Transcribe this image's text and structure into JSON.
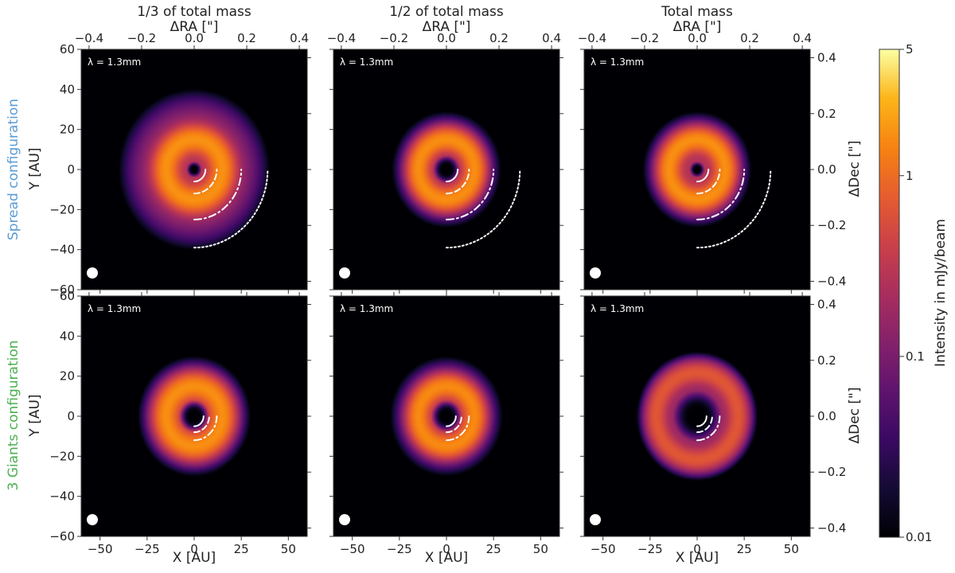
{
  "chart_data": {
    "type": "heatmap",
    "colormap": "inferno",
    "colorbar": {
      "label": "Intensity in mJy/beam",
      "scale": "log",
      "range": [
        0.01,
        5
      ],
      "ticks": [
        {
          "value": 5,
          "label": "5"
        },
        {
          "value": 1,
          "label": "1"
        },
        {
          "value": 0.1,
          "label": "0.1"
        },
        {
          "value": 0.01,
          "label": "0.01"
        }
      ]
    },
    "x_axis": {
      "label": "X [AU]",
      "range": [
        -60,
        60
      ],
      "ticks": [
        {
          "value": -50,
          "label": "−50"
        },
        {
          "value": -25,
          "label": "−25"
        },
        {
          "value": 0,
          "label": "0"
        },
        {
          "value": 25,
          "label": "25"
        },
        {
          "value": 50,
          "label": "50"
        }
      ]
    },
    "y_axis": {
      "label": "Y [AU]",
      "range": [
        -60,
        60
      ],
      "ticks": [
        {
          "value": 60,
          "label": "60"
        },
        {
          "value": 40,
          "label": "40"
        },
        {
          "value": 20,
          "label": "20"
        },
        {
          "value": 0,
          "label": "0"
        },
        {
          "value": -20,
          "label": "−20"
        },
        {
          "value": -40,
          "label": "−40"
        },
        {
          "value": -60,
          "label": "−60"
        }
      ]
    },
    "top_axis": {
      "label": "ΔRA [\"]",
      "range": [
        -0.43,
        0.43
      ],
      "ticks": [
        {
          "value": -0.4,
          "label": "−0.4"
        },
        {
          "value": -0.2,
          "label": "−0.2"
        },
        {
          "value": 0.0,
          "label": "0.0"
        },
        {
          "value": 0.2,
          "label": "0.2"
        },
        {
          "value": 0.4,
          "label": "0.4"
        }
      ]
    },
    "right_axis": {
      "label": "ΔDec [\"]",
      "range": [
        -0.43,
        0.43
      ],
      "ticks": [
        {
          "value": 0.4,
          "label": "0.4"
        },
        {
          "value": 0.2,
          "label": "0.2"
        },
        {
          "value": 0.0,
          "label": "0.0"
        },
        {
          "value": -0.2,
          "label": "−0.2"
        },
        {
          "value": -0.4,
          "label": "−0.4"
        }
      ]
    },
    "columns": [
      "1/3 of total mass",
      "1/2 of total mass",
      "Total mass"
    ],
    "rows": [
      {
        "label": "Spread configuration",
        "color": "#5b9bd5"
      },
      {
        "label": "3 Giants configuration",
        "color": "#4caf50"
      }
    ],
    "wavelength_label": "λ = 1.3mm",
    "panels": [
      {
        "row": 0,
        "col": 0,
        "cavity_radius_au": 4,
        "ring_radius_au": 15,
        "ring_width_au": 9,
        "ring_peak": 1.5,
        "halo_radius_au": 60,
        "halo_level": 0.25,
        "planet_arcs": [
          {
            "radius_au": 6,
            "style": "solid"
          },
          {
            "radius_au": 12,
            "style": "dashed"
          },
          {
            "radius_au": 25,
            "style": "dashdot"
          },
          {
            "radius_au": 39,
            "style": "dotted"
          }
        ]
      },
      {
        "row": 0,
        "col": 1,
        "cavity_radius_au": 7,
        "ring_radius_au": 15,
        "ring_width_au": 8,
        "ring_peak": 1.5,
        "halo_radius_au": 44,
        "halo_level": 0.2,
        "planet_arcs": [
          {
            "radius_au": 6,
            "style": "solid"
          },
          {
            "radius_au": 12,
            "style": "dashed"
          },
          {
            "radius_au": 25,
            "style": "dashdot"
          },
          {
            "radius_au": 39,
            "style": "dotted"
          }
        ]
      },
      {
        "row": 0,
        "col": 2,
        "cavity_radius_au": 4,
        "ring_radius_au": 15,
        "ring_width_au": 8,
        "ring_peak": 1.5,
        "halo_radius_au": 43,
        "halo_level": 0.25,
        "planet_arcs": [
          {
            "radius_au": 6,
            "style": "solid"
          },
          {
            "radius_au": 12,
            "style": "dashed"
          },
          {
            "radius_au": 25,
            "style": "dashdot"
          },
          {
            "radius_au": 39,
            "style": "dotted"
          }
        ]
      },
      {
        "row": 1,
        "col": 0,
        "cavity_radius_au": 8,
        "ring_radius_au": 15,
        "ring_width_au": 9,
        "ring_peak": 1.5,
        "halo_radius_au": 45,
        "halo_level": 0.22,
        "planet_arcs": [
          {
            "radius_au": 5,
            "style": "solid"
          },
          {
            "radius_au": 8,
            "style": "dashed"
          },
          {
            "radius_au": 12,
            "style": "dashdot"
          }
        ]
      },
      {
        "row": 1,
        "col": 1,
        "cavity_radius_au": 8,
        "ring_radius_au": 15,
        "ring_width_au": 8,
        "ring_peak": 1.4,
        "halo_radius_au": 45,
        "halo_level": 0.22,
        "planet_arcs": [
          {
            "radius_au": 5,
            "style": "solid"
          },
          {
            "radius_au": 8,
            "style": "dashed"
          },
          {
            "radius_au": 12,
            "style": "dashdot"
          }
        ]
      },
      {
        "row": 1,
        "col": 2,
        "cavity_radius_au": 13,
        "ring_radius_au": 22,
        "ring_width_au": 8,
        "ring_peak": 0.6,
        "halo_radius_au": 45,
        "halo_level": 0.18,
        "planet_arcs": [
          {
            "radius_au": 5,
            "style": "solid"
          },
          {
            "radius_au": 8,
            "style": "dashed"
          },
          {
            "radius_au": 12,
            "style": "dashdot"
          }
        ]
      }
    ]
  }
}
